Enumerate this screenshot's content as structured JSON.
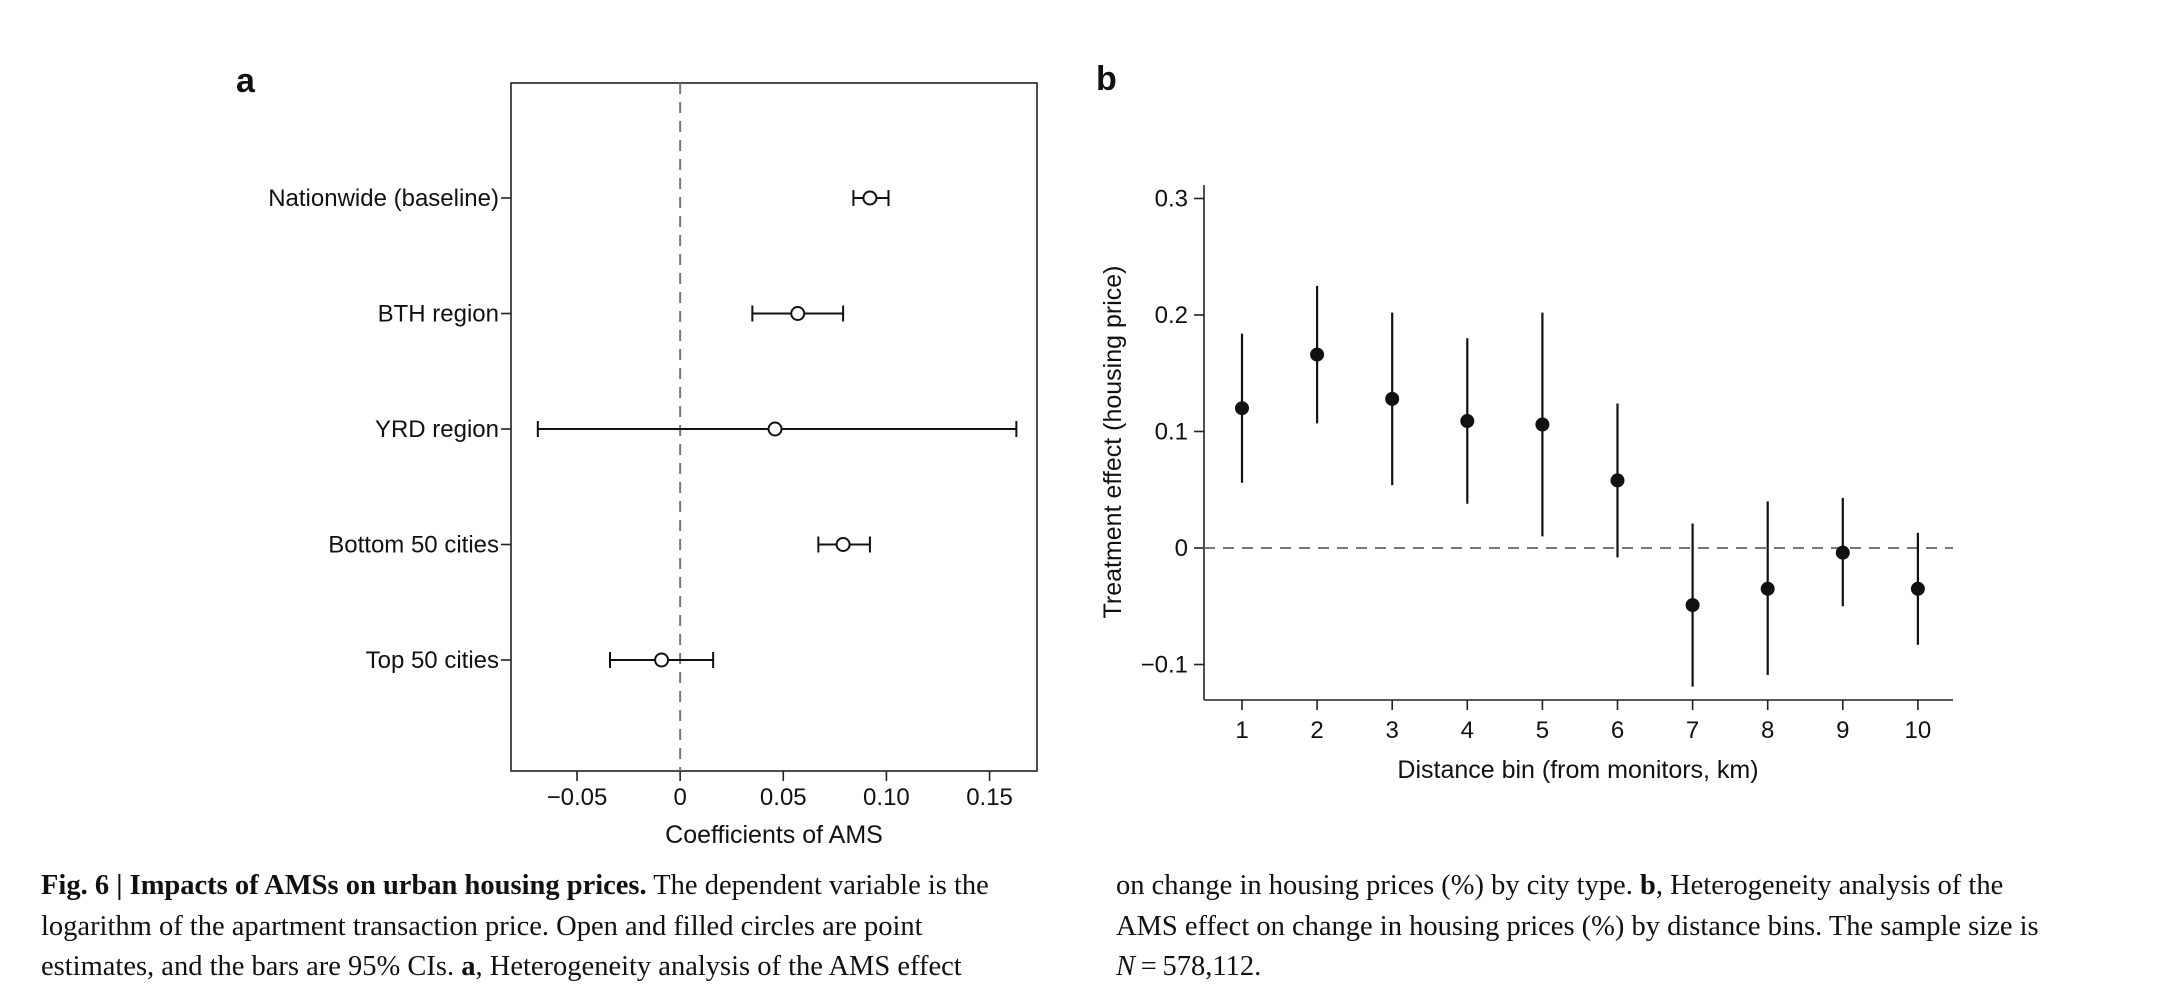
{
  "figure": {
    "panels": [
      "a",
      "b"
    ]
  },
  "chart_data": [
    {
      "type": "scatter",
      "panel": "a",
      "orientation": "horizontal",
      "marker": "open-circle",
      "xlabel": "Coefficients of AMS",
      "ylabel": "",
      "xlim": [
        -0.082,
        0.173
      ],
      "xticks": [
        -0.05,
        0,
        0.05,
        0.1,
        0.15
      ],
      "xtick_labels": [
        "−0.05",
        "0",
        "0.05",
        "0.10",
        "0.15"
      ],
      "reference_line": 0,
      "categories": [
        "Nationwide (baseline)",
        "BTH region",
        "YRD region",
        "Bottom 50 cities",
        "Top 50 cities"
      ],
      "values": [
        0.092,
        0.057,
        0.046,
        0.079,
        -0.009
      ],
      "ci_low": [
        0.084,
        0.035,
        -0.069,
        0.067,
        -0.034
      ],
      "ci_high": [
        0.101,
        0.079,
        0.163,
        0.092,
        0.016
      ]
    },
    {
      "type": "scatter",
      "panel": "b",
      "marker": "filled-circle",
      "xlabel": "Distance bin (from monitors, km)",
      "ylabel": "Treatment effect (housing price)",
      "ylim": [
        -0.13,
        0.31
      ],
      "yticks": [
        -0.1,
        0,
        0.1,
        0.2,
        0.3
      ],
      "ytick_labels": [
        "−0.1",
        "0",
        "0.1",
        "0.2",
        "0.3"
      ],
      "reference_line": 0,
      "x": [
        1,
        2,
        3,
        4,
        5,
        6,
        7,
        8,
        9,
        10
      ],
      "xtick_labels": [
        "1",
        "2",
        "3",
        "4",
        "5",
        "6",
        "7",
        "8",
        "9",
        "10"
      ],
      "values": [
        0.12,
        0.166,
        0.128,
        0.109,
        0.106,
        0.058,
        -0.049,
        -0.035,
        -0.004,
        -0.035
      ],
      "ci_low": [
        0.056,
        0.107,
        0.054,
        0.038,
        0.01,
        -0.008,
        -0.119,
        -0.109,
        -0.05,
        -0.083
      ],
      "ci_high": [
        0.184,
        0.225,
        0.202,
        0.18,
        0.202,
        0.124,
        0.021,
        0.04,
        0.043,
        0.013
      ]
    }
  ],
  "caption": {
    "left_lines": [
      [
        {
          "t": "Fig. 6 | Impacts of AMSs on urban housing prices.",
          "s": "b"
        },
        {
          "t": " The dependent variable is the"
        }
      ],
      [
        {
          "t": "logarithm of the apartment transaction price. Open and filled circles are point"
        }
      ],
      [
        {
          "t": "estimates, and the bars are 95% CIs. "
        },
        {
          "t": "a",
          "s": "b"
        },
        {
          "t": ", Heterogeneity analysis of the AMS effect"
        }
      ]
    ],
    "right_lines": [
      [
        {
          "t": "on change in housing prices (%) by city type. "
        },
        {
          "t": "b",
          "s": "b"
        },
        {
          "t": ", Heterogeneity analysis of the"
        }
      ],
      [
        {
          "t": "AMS effect on change in housing prices (%) by distance bins. The sample size is"
        }
      ],
      [
        {
          "t": "N",
          "s": "i"
        },
        {
          "t": " = 578,112."
        }
      ]
    ]
  }
}
